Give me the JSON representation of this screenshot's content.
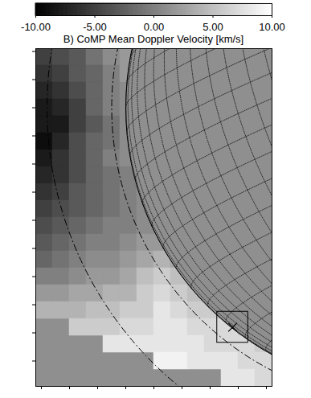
{
  "chart_data": {
    "type": "heatmap",
    "title": "B) CoMP Mean Doppler Velocity [km/s]",
    "x": [
      -1.29,
      -1.23,
      -1.17,
      -1.11,
      -1.05,
      -0.99,
      -0.93,
      -0.87,
      -0.81,
      -0.75,
      -0.69,
      -0.63,
      -0.57,
      -0.51
    ],
    "y": [
      0.18,
      0.12,
      0.06,
      0,
      -0.06,
      -0.12,
      -0.18,
      -0.24,
      -0.3,
      -0.36,
      -0.42,
      -0.48,
      -0.54,
      -0.6,
      -0.66,
      -0.72,
      -0.78,
      -0.84,
      -0.9,
      -0.96
    ],
    "values": [
      [
        -5,
        -4,
        -3,
        -1,
        1,
        2,
        null,
        null,
        null,
        null,
        null,
        null,
        null,
        null
      ],
      [
        -6,
        -5,
        -3,
        -2,
        0,
        2,
        null,
        null,
        null,
        null,
        null,
        null,
        null,
        null
      ],
      [
        -7,
        -6,
        -4,
        -2,
        0,
        1,
        null,
        null,
        null,
        null,
        null,
        null,
        null,
        null
      ],
      [
        -8,
        -7,
        -5,
        -2,
        0,
        1,
        null,
        null,
        null,
        null,
        null,
        null,
        null,
        null
      ],
      [
        -8,
        -8,
        -5,
        -3,
        -1,
        1,
        null,
        null,
        null,
        null,
        null,
        null,
        null,
        null
      ],
      [
        -9,
        -7,
        -4,
        -2,
        -1,
        1,
        null,
        null,
        null,
        null,
        null,
        null,
        null,
        null
      ],
      [
        -8,
        -6,
        -4,
        -2,
        0,
        1,
        null,
        null,
        null,
        null,
        null,
        null,
        null,
        null
      ],
      [
        -7,
        -6,
        -4,
        -2,
        -1,
        0,
        1,
        null,
        null,
        null,
        null,
        null,
        null,
        null
      ],
      [
        -6,
        -5,
        -3,
        -2,
        -1,
        0,
        1,
        null,
        null,
        null,
        null,
        null,
        null,
        null
      ],
      [
        -5,
        -4,
        -3,
        -2,
        -1,
        0,
        1,
        null,
        null,
        null,
        null,
        null,
        null,
        null
      ],
      [
        -4,
        -3,
        -2,
        -1,
        0,
        0,
        1,
        1,
        null,
        null,
        null,
        null,
        null,
        null
      ],
      [
        -3,
        -2,
        -1,
        0,
        0,
        1,
        2,
        2,
        null,
        null,
        null,
        null,
        null,
        null
      ],
      [
        -2,
        -1,
        0,
        1,
        1,
        2,
        3,
        4,
        3,
        null,
        null,
        null,
        null,
        null
      ],
      [
        0,
        0,
        1,
        2,
        2,
        3,
        5,
        6,
        5,
        4,
        null,
        null,
        null,
        null
      ],
      [
        2,
        2,
        3,
        3,
        4,
        4,
        6,
        7,
        6,
        5,
        5,
        null,
        null,
        null
      ],
      [
        4,
        4,
        4,
        5,
        5,
        6,
        6,
        8,
        7,
        6,
        6,
        6,
        null,
        null
      ],
      [
        null,
        null,
        6,
        6,
        6,
        7,
        7,
        8,
        8,
        7,
        7,
        7,
        6,
        null
      ],
      [
        null,
        null,
        null,
        null,
        8,
        8,
        8,
        8,
        8,
        8,
        7,
        7,
        7,
        6
      ],
      [
        null,
        null,
        null,
        null,
        null,
        null,
        null,
        9,
        9,
        8,
        8,
        8,
        7,
        7
      ],
      [
        null,
        null,
        null,
        null,
        null,
        null,
        null,
        null,
        null,
        null,
        null,
        8,
        8,
        7
      ]
    ],
    "xlim": [
      -1.32,
      -0.48
    ],
    "ylim": [
      -0.99,
      0.21
    ],
    "xticks": [
      -1.3,
      -1.2,
      -1.1,
      -1,
      -0.9,
      -0.8,
      -0.7,
      -0.6,
      -0.5
    ],
    "yticks": [
      -0.9,
      -0.8,
      -0.7,
      -0.6,
      -0.5,
      -0.4,
      -0.3,
      -0.2,
      -0.1,
      0,
      0.1,
      0.2
    ],
    "tick_labels": false,
    "colorbar_range": [
      -10,
      10
    ],
    "colorbar_ticks": [
      {
        "value": -10,
        "label": "-10.00"
      },
      {
        "value": -5,
        "label": "-5.00"
      },
      {
        "value": 0,
        "label": "0.00"
      },
      {
        "value": 5,
        "label": "5.00"
      },
      {
        "value": 10,
        "label": "10.00"
      }
    ],
    "limb_radius": 1,
    "grid": true,
    "circles": [
      1.05,
      1.28
    ],
    "line_style": "dashdot",
    "box": {
      "x": -0.62,
      "y": -0.78,
      "size": 0.11
    },
    "marker": "x"
  }
}
